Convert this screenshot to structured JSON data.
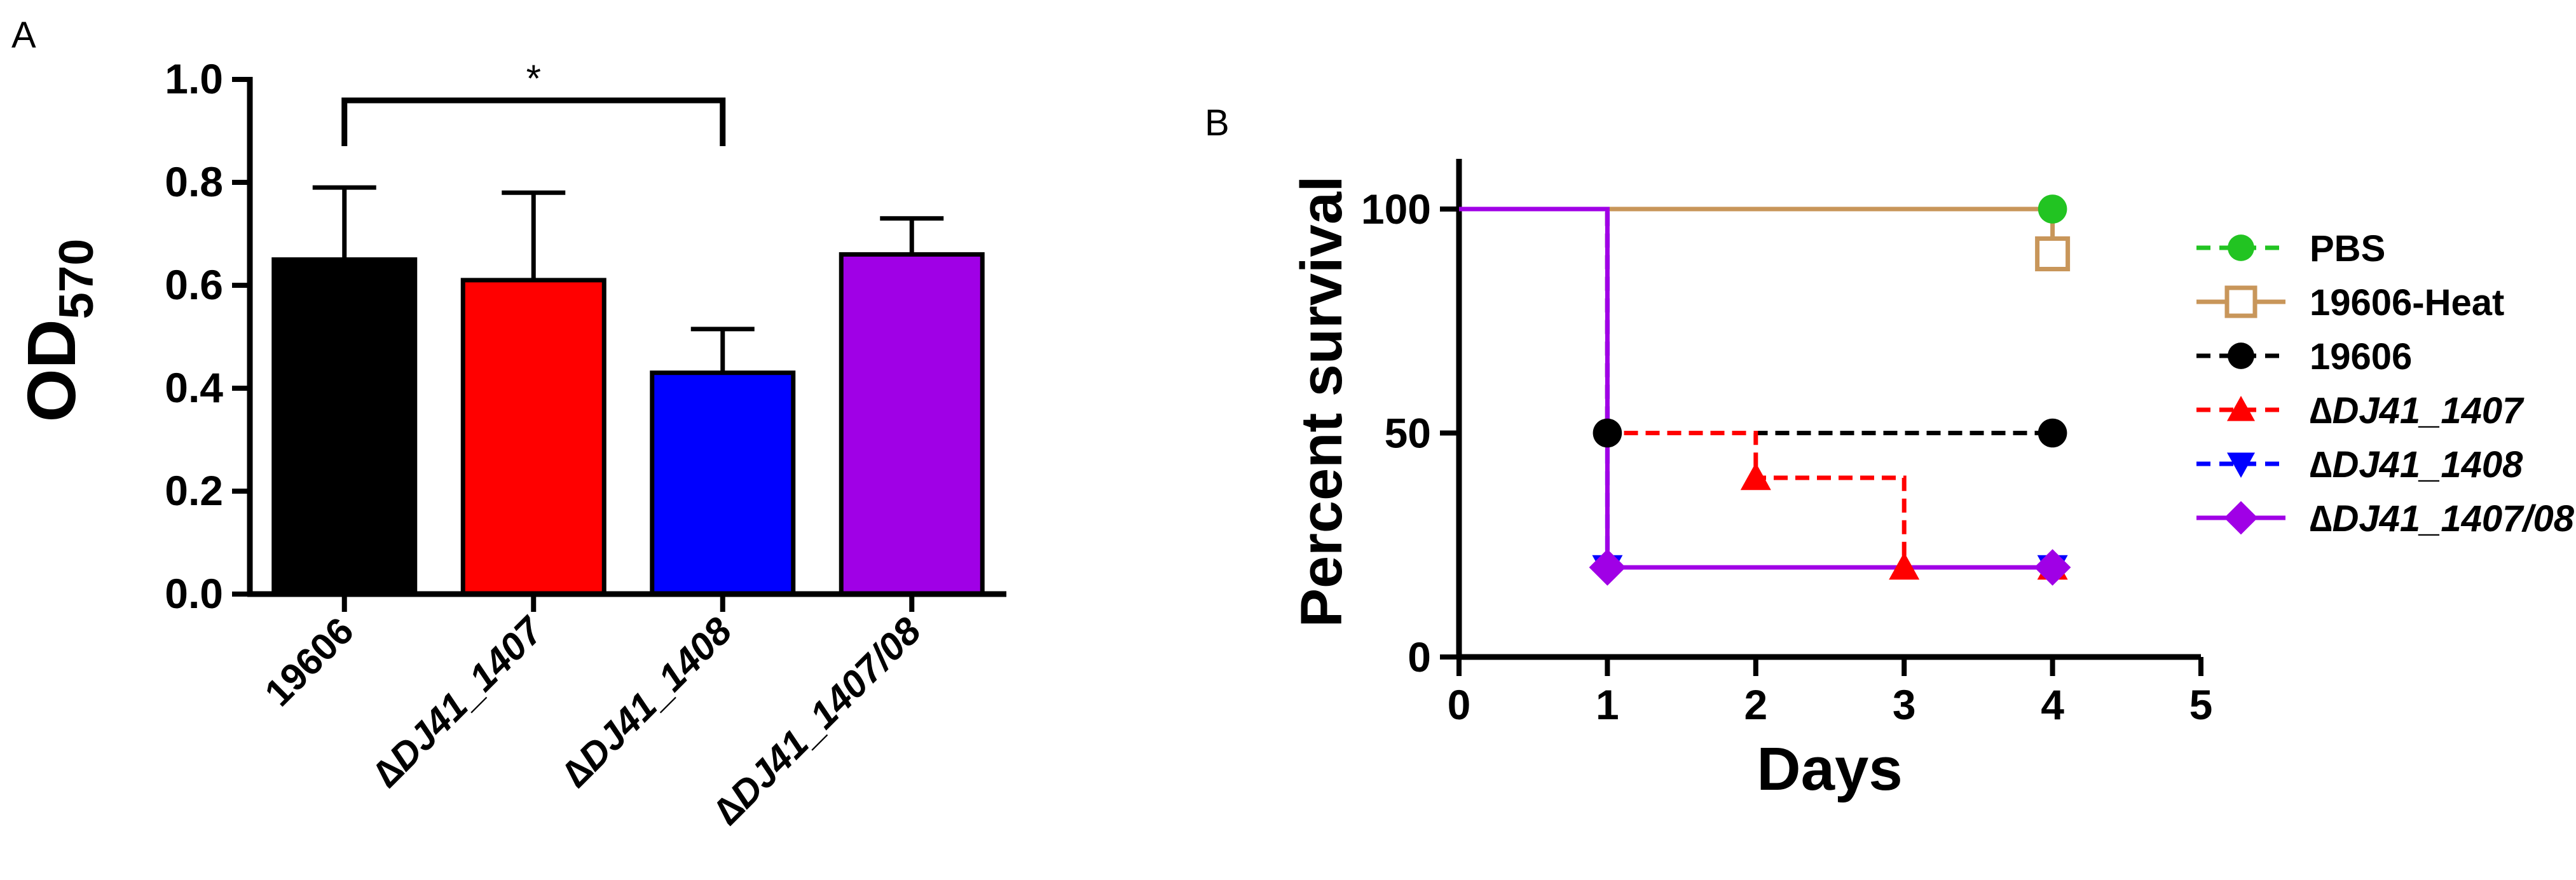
{
  "panel_labels": {
    "a": "A",
    "b": "B"
  },
  "chart_data": [
    {
      "type": "bar",
      "ylabel_main": "OD",
      "ylabel_sub": "570",
      "ylim": [
        0,
        1.0
      ],
      "yticks": [
        "0.0",
        "0.2",
        "0.4",
        "0.6",
        "0.8",
        "1.0"
      ],
      "categories": [
        "19606",
        "∆DJ41_1407",
        "∆DJ41_1408",
        "∆DJ41_1407/08"
      ],
      "values": [
        0.65,
        0.61,
        0.43,
        0.66
      ],
      "errors": [
        0.14,
        0.17,
        0.085,
        0.07
      ],
      "colors": [
        "#000000",
        "#ff0000",
        "#0000ff",
        "#a000e6"
      ],
      "significance": {
        "from": 0,
        "to": 2,
        "label": "*"
      }
    },
    {
      "type": "line",
      "ylabel": "Percent survival",
      "xlabel": "Days",
      "xlim": [
        0,
        5
      ],
      "ylim": [
        0,
        100
      ],
      "xticks": [
        "0",
        "1",
        "2",
        "3",
        "4",
        "5"
      ],
      "yticks": [
        "0",
        "50",
        "100"
      ],
      "series": [
        {
          "name": "PBS",
          "color": "#22c422",
          "marker": "circle",
          "dash": "dash",
          "points": [
            [
              0,
              100
            ],
            [
              4,
              100
            ]
          ],
          "markers": [
            [
              4,
              100
            ]
          ]
        },
        {
          "name": "19606-Heat",
          "color": "#c8965a",
          "marker": "square-open",
          "dash": "solid",
          "points": [
            [
              0,
              100
            ],
            [
              4,
              100
            ],
            [
              4,
              90
            ]
          ],
          "markers": [
            [
              4,
              90
            ]
          ]
        },
        {
          "name": "19606",
          "color": "#000000",
          "marker": "circle",
          "dash": "dash",
          "points": [
            [
              0,
              100
            ],
            [
              1,
              100
            ],
            [
              1,
              50
            ],
            [
              4,
              50
            ]
          ],
          "markers": [
            [
              1,
              50
            ],
            [
              4,
              50
            ]
          ]
        },
        {
          "name": "∆DJ41_1407",
          "color": "#ff0000",
          "marker": "triangle-up",
          "dash": "dash",
          "points": [
            [
              0,
              100
            ],
            [
              1,
              100
            ],
            [
              1,
              50
            ],
            [
              2,
              50
            ],
            [
              2,
              40
            ],
            [
              3,
              40
            ],
            [
              3,
              20
            ],
            [
              4,
              20
            ]
          ],
          "markers": [
            [
              2,
              40
            ],
            [
              3,
              20
            ],
            [
              4,
              20
            ]
          ]
        },
        {
          "name": "∆DJ41_1408",
          "color": "#0000ff",
          "marker": "triangle-down",
          "dash": "dash",
          "points": [
            [
              0,
              100
            ],
            [
              1,
              100
            ],
            [
              1,
              20
            ],
            [
              4,
              20
            ]
          ],
          "markers": [
            [
              1,
              20
            ],
            [
              4,
              20
            ]
          ]
        },
        {
          "name": "∆DJ41_1407/08",
          "color": "#a000e6",
          "marker": "diamond",
          "dash": "solid",
          "points": [
            [
              0,
              100
            ],
            [
              1,
              100
            ],
            [
              1,
              20
            ],
            [
              4,
              20
            ]
          ],
          "markers": [
            [
              1,
              20
            ],
            [
              4,
              20
            ]
          ]
        }
      ]
    }
  ]
}
